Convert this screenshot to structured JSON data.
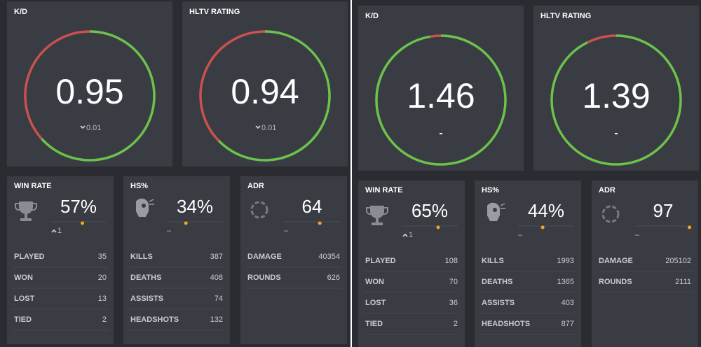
{
  "panels": [
    {
      "rings": [
        {
          "label": "K/D",
          "value": 0.95,
          "change": "0.01",
          "trend": "down",
          "range": [
            0,
            1.5
          ]
        },
        {
          "label": "HLTV RATING",
          "value": 0.94,
          "change": "0.01",
          "trend": "down",
          "range": [
            0,
            1.5
          ]
        }
      ],
      "cards": [
        {
          "label": "WIN RATE",
          "value": 57,
          "value_label": "57%",
          "change": "1",
          "trend": "up",
          "range": [
            0,
            100
          ],
          "stats": [
            {
              "name": "PLAYED",
              "value": 35
            },
            {
              "name": "WON",
              "value": 20
            },
            {
              "name": "LOST",
              "value": 13
            },
            {
              "name": "TIED",
              "value": 2
            }
          ]
        },
        {
          "label": "HS%",
          "value": 34,
          "value_label": "34%",
          "change": "–",
          "range": [
            0,
            100
          ],
          "stats": [
            {
              "name": "KILLS",
              "value": 387
            },
            {
              "name": "DEATHS",
              "value": 408
            },
            {
              "name": "ASSISTS",
              "value": 74
            },
            {
              "name": "HEADSHOTS",
              "value": 132
            }
          ]
        },
        {
          "label": "ADR",
          "value": 64,
          "change": "–",
          "range": [
            0,
            100
          ],
          "stats": [
            {
              "name": "DAMAGE",
              "value": 40354
            },
            {
              "name": "ROUNDS",
              "value": 626
            }
          ]
        }
      ]
    },
    {
      "rings": [
        {
          "label": "K/D",
          "value": 1.46,
          "change": "-",
          "range": [
            0,
            1.5
          ]
        },
        {
          "label": "HLTV RATING",
          "value": 1.39,
          "change": "-",
          "range": [
            0,
            1.5
          ]
        }
      ],
      "cards": [
        {
          "label": "WIN RATE",
          "value": 65,
          "value_label": "65%",
          "change": "1",
          "trend": "up",
          "range": [
            0,
            100
          ],
          "stats": [
            {
              "name": "PLAYED",
              "value": 108
            },
            {
              "name": "WON",
              "value": 70
            },
            {
              "name": "LOST",
              "value": 36
            },
            {
              "name": "TIED",
              "value": 2
            }
          ]
        },
        {
          "label": "HS%",
          "value": 44,
          "value_label": "44%",
          "change": "–",
          "range": [
            0,
            100
          ],
          "stats": [
            {
              "name": "KILLS",
              "value": 1993
            },
            {
              "name": "DEATHS",
              "value": 1365
            },
            {
              "name": "ASSISTS",
              "value": 403
            },
            {
              "name": "HEADSHOTS",
              "value": 877
            }
          ]
        },
        {
          "label": "ADR",
          "value": 97,
          "change": "–",
          "range": [
            0,
            100
          ],
          "stats": [
            {
              "name": "DAMAGE",
              "value": 205102
            },
            {
              "name": "ROUNDS",
              "value": 2111
            }
          ]
        }
      ]
    }
  ]
}
